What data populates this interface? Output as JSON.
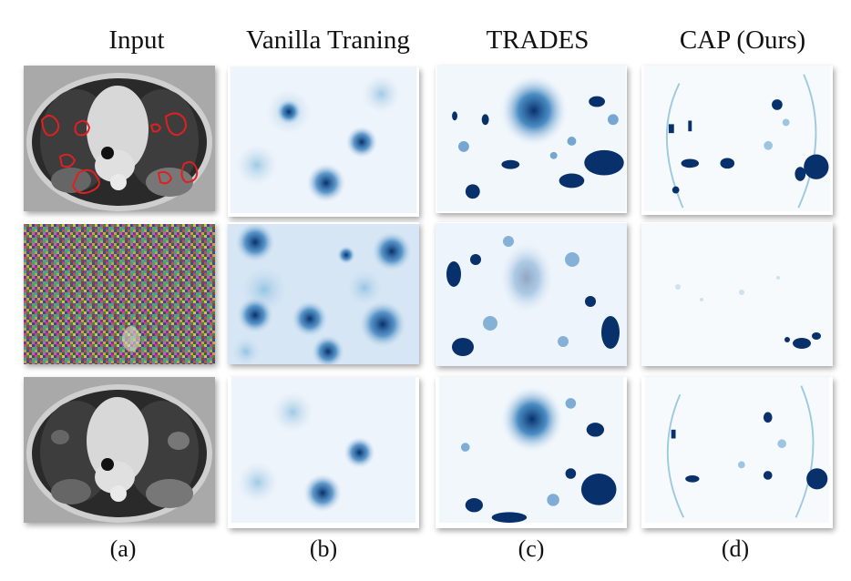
{
  "figure": {
    "columns": [
      {
        "title": "Input",
        "label": "(a)"
      },
      {
        "title": "Vanilla Traning",
        "label": "(b)"
      },
      {
        "title": "TRADES",
        "label": "(c)"
      },
      {
        "title": "CAP (Ours)",
        "label": "(d)"
      }
    ],
    "rows": 3,
    "colors": {
      "heat_dark": "#08306b",
      "heat_mid": "#2171b5",
      "heat_light": "#c6dbef",
      "contour": "#e02020",
      "ct_gray": "#9a9a9a"
    }
  }
}
